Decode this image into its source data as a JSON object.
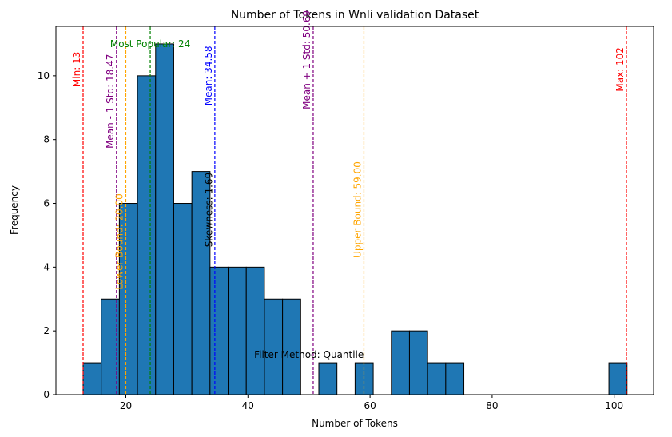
{
  "chart_data": {
    "type": "bar",
    "title": "Number of Tokens in Wnli validation Dataset",
    "xlabel": "Number of Tokens",
    "ylabel": "Frequency",
    "xlim": [
      8.55,
      106.45
    ],
    "ylim": [
      0,
      11.55
    ],
    "xticks": [
      20,
      40,
      60,
      80,
      100
    ],
    "yticks": [
      0,
      2,
      4,
      6,
      8,
      10
    ],
    "bar_color": "#1f77b4",
    "bar_edge_color": "#000000",
    "bins": [
      {
        "x0": 13.0,
        "x1": 15.97,
        "count": 1
      },
      {
        "x0": 15.97,
        "x1": 18.94,
        "count": 3
      },
      {
        "x0": 18.94,
        "x1": 21.91,
        "count": 6
      },
      {
        "x0": 21.91,
        "x1": 24.88,
        "count": 10
      },
      {
        "x0": 24.88,
        "x1": 27.85,
        "count": 11
      },
      {
        "x0": 27.85,
        "x1": 30.82,
        "count": 6
      },
      {
        "x0": 30.82,
        "x1": 33.79,
        "count": 7
      },
      {
        "x0": 33.79,
        "x1": 36.76,
        "count": 4
      },
      {
        "x0": 36.76,
        "x1": 39.73,
        "count": 4
      },
      {
        "x0": 39.73,
        "x1": 42.7,
        "count": 4
      },
      {
        "x0": 42.7,
        "x1": 45.67,
        "count": 3
      },
      {
        "x0": 45.67,
        "x1": 48.64,
        "count": 3
      },
      {
        "x0": 51.61,
        "x1": 54.58,
        "count": 1
      },
      {
        "x0": 57.55,
        "x1": 60.52,
        "count": 1
      },
      {
        "x0": 63.49,
        "x1": 66.46,
        "count": 2
      },
      {
        "x0": 66.46,
        "x1": 69.43,
        "count": 2
      },
      {
        "x0": 69.43,
        "x1": 72.4,
        "count": 1
      },
      {
        "x0": 72.4,
        "x1": 75.37,
        "count": 1
      },
      {
        "x0": 99.13,
        "x1": 102.1,
        "count": 1
      }
    ],
    "reference_lines": [
      {
        "name": "min",
        "x": 13,
        "label": "Min: 13",
        "color": "#ff0000",
        "label_y": 10.2,
        "orientation": "vertical"
      },
      {
        "name": "mean-minus-std",
        "x": 18.47,
        "label": "Mean - 1 Std: 18.47",
        "color": "#800080",
        "label_y": 9.2,
        "orientation": "vertical"
      },
      {
        "name": "lower-bound",
        "x": 20.0,
        "label": "Lower Bound: 20.00",
        "color": "#ffa500",
        "label_y": 4.8,
        "orientation": "vertical"
      },
      {
        "name": "most-popular",
        "x": 24,
        "label": "Most Popular: 24",
        "color": "#008000",
        "label_y": 11.0,
        "orientation": "horizontal"
      },
      {
        "name": "mean",
        "x": 34.58,
        "label": "Mean: 34.58",
        "color": "#0000ff",
        "label_y": 10.0,
        "orientation": "vertical"
      },
      {
        "name": "mean-plus-std",
        "x": 50.69,
        "label": "Mean + 1 Std: 50.69",
        "color": "#800080",
        "label_y": 10.5,
        "orientation": "vertical"
      },
      {
        "name": "upper-bound",
        "x": 59.0,
        "label": "Upper Bound: 59.00",
        "color": "#ffa500",
        "label_y": 5.8,
        "orientation": "vertical"
      },
      {
        "name": "max",
        "x": 102,
        "label": "Max: 102",
        "color": "#ff0000",
        "label_y": 10.2,
        "orientation": "vertical"
      }
    ],
    "annotations": [
      {
        "name": "skewness",
        "text": "Skewness: 1.69",
        "x": 33.6,
        "y": 5.8,
        "color": "#000000",
        "rotation": "vertical"
      },
      {
        "name": "filter-method",
        "text": "Filter Method: Quantile",
        "x": 50,
        "y": 1.0,
        "color": "#000000",
        "rotation": "horizontal"
      }
    ]
  }
}
